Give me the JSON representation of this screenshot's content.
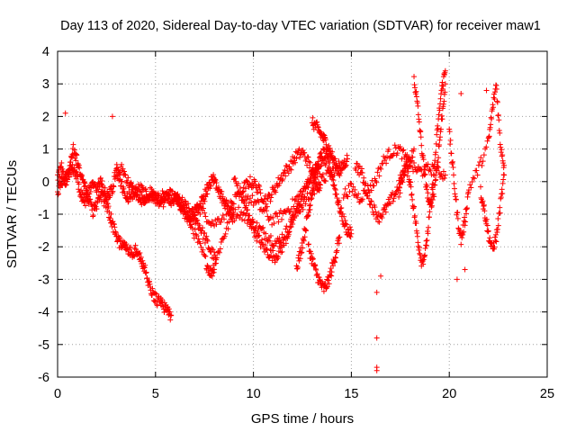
{
  "chart_data": {
    "type": "scatter",
    "title": "Day 113 of 2020, Sidereal Day-to-day VTEC variation (SDTVAR) for receiver maw1",
    "xlabel": "GPS time / hours",
    "ylabel": "SDTVAR / TECUs",
    "xlim": [
      0,
      25
    ],
    "ylim": [
      -6,
      4
    ],
    "xticks": [
      "0",
      "5",
      "10",
      "15",
      "20",
      "25"
    ],
    "yticks": [
      "4",
      "3",
      "2",
      "1",
      "0",
      "-1",
      "-2",
      "-3",
      "-4",
      "-5",
      "-6"
    ],
    "grid": true,
    "marker": "+",
    "color": "#ff0000",
    "series": [
      {
        "name": "trace-1",
        "x": [
          0.0,
          0.2,
          0.4,
          0.6,
          0.8,
          1.0,
          1.2,
          1.4,
          1.6,
          1.8,
          2.0,
          2.2,
          2.4,
          2.6,
          2.8,
          3.0,
          3.2,
          3.4,
          3.6,
          3.8,
          4.0,
          4.2,
          4.4,
          4.6,
          4.8,
          5.0,
          5.2,
          5.4,
          5.6,
          5.8
        ],
        "y": [
          0.2,
          0.4,
          0.1,
          0.5,
          1.0,
          0.6,
          0.1,
          -0.2,
          -0.6,
          -0.9,
          -0.7,
          -0.4,
          -0.6,
          -0.9,
          -1.3,
          -1.7,
          -1.9,
          -2.0,
          -2.1,
          -2.2,
          -2.1,
          -2.3,
          -2.6,
          -3.0,
          -3.4,
          -3.6,
          -3.7,
          -3.8,
          -4.0,
          -4.1
        ]
      },
      {
        "name": "trace-2",
        "x": [
          0.0,
          0.2,
          0.4,
          0.6,
          0.8,
          1.0,
          1.2,
          1.4,
          1.6,
          1.8,
          2.0,
          2.2,
          2.4,
          2.6,
          2.8,
          3.0,
          3.2,
          3.4,
          3.6,
          3.8,
          4.0,
          4.2,
          4.4,
          4.6,
          4.8,
          5.0,
          5.2,
          5.4,
          5.6,
          5.8,
          6.0,
          6.2,
          6.4,
          6.6,
          6.8,
          7.0,
          7.2,
          7.4,
          7.6,
          7.8,
          8.0,
          8.2,
          8.4,
          8.6,
          8.8,
          9.0
        ],
        "y": [
          -0.3,
          0.0,
          -0.1,
          0.3,
          0.4,
          0.1,
          -0.4,
          -0.6,
          -0.3,
          -0.1,
          -0.2,
          0.0,
          -0.3,
          -0.5,
          -0.2,
          0.4,
          0.0,
          -0.3,
          -0.5,
          -0.4,
          -0.3,
          -0.5,
          -0.6,
          -0.5,
          -0.4,
          -0.5,
          -0.6,
          -0.4,
          -0.5,
          -0.6,
          -0.5,
          -0.7,
          -0.9,
          -1.1,
          -1.2,
          -1.0,
          -0.8,
          -0.6,
          -0.3,
          0.0,
          0.1,
          -0.2,
          -0.5,
          -0.7,
          -0.9,
          -1.0
        ]
      },
      {
        "name": "trace-3",
        "x": [
          3.0,
          3.3,
          3.6,
          3.9,
          4.2,
          4.5,
          4.8,
          5.1,
          5.4,
          5.7,
          6.0,
          6.3,
          6.6,
          6.9,
          7.2,
          7.5,
          7.8,
          8.1
        ],
        "y": [
          0.2,
          0.4,
          0.0,
          -0.3,
          -0.2,
          -0.4,
          -0.3,
          -0.5,
          -0.6,
          -0.4,
          -0.5,
          -0.6,
          -0.8,
          -1.0,
          -1.3,
          -1.7,
          -2.1,
          -2.4
        ]
      },
      {
        "name": "trace-4",
        "x": [
          6.0,
          6.4,
          6.8,
          7.2,
          7.6,
          7.8,
          8.0,
          8.4,
          8.8,
          9.2,
          9.6,
          10.0,
          10.4,
          10.8,
          11.2,
          11.6,
          12.0,
          12.4,
          12.8,
          13.2,
          13.6,
          14.0,
          14.4
        ],
        "y": [
          -0.5,
          -0.8,
          -1.3,
          -1.9,
          -2.5,
          -2.8,
          -2.6,
          -1.8,
          -1.2,
          -0.9,
          -1.1,
          -1.3,
          -1.5,
          -1.7,
          -1.9,
          -1.6,
          -1.2,
          -0.8,
          -0.5,
          -0.2,
          0.1,
          0.3,
          0.5
        ]
      },
      {
        "name": "trace-5",
        "x": [
          7.0,
          7.5,
          8.0,
          8.5,
          9.0,
          9.5,
          10.0,
          10.5,
          11.0,
          11.5,
          12.0,
          12.5,
          13.0,
          13.5,
          14.0
        ],
        "y": [
          -0.7,
          -1.0,
          -1.3,
          -1.0,
          -0.6,
          -0.4,
          -0.6,
          -0.9,
          -1.2,
          -1.0,
          -0.7,
          -0.3,
          0.1,
          0.5,
          0.8
        ]
      },
      {
        "name": "trace-6",
        "x": [
          9.0,
          9.3,
          9.6,
          9.9,
          10.2,
          10.5,
          10.8,
          11.1,
          11.4,
          11.7,
          12.0,
          12.3,
          12.6,
          12.9,
          13.2,
          13.5
        ],
        "y": [
          0.1,
          -0.3,
          -0.8,
          -1.3,
          -1.7,
          -2.0,
          -2.2,
          -2.3,
          -2.1,
          -1.7,
          -1.2,
          -0.7,
          -0.3,
          0.1,
          0.4,
          0.7
        ]
      },
      {
        "name": "trace-7",
        "x": [
          9.5,
          9.8,
          10.1,
          10.4,
          10.7,
          11.0,
          11.3,
          11.6,
          11.9,
          12.2,
          12.5,
          12.8,
          13.1,
          13.4
        ],
        "y": [
          -0.2,
          0.0,
          -0.1,
          -0.4,
          -0.6,
          -0.3,
          0.0,
          0.3,
          0.5,
          0.8,
          0.9,
          0.6,
          0.2,
          -0.2
        ]
      },
      {
        "name": "trace-8",
        "x": [
          12.2,
          12.4,
          12.6,
          12.8,
          13.0,
          13.2,
          13.4,
          13.6,
          13.8,
          14.0,
          14.2,
          14.4,
          14.6,
          14.8,
          15.0
        ],
        "y": [
          -2.6,
          -2.2,
          -1.6,
          -1.0,
          -0.3,
          0.3,
          0.7,
          0.9,
          0.6,
          0.2,
          -0.3,
          -0.8,
          -1.2,
          -1.5,
          -1.6
        ]
      },
      {
        "name": "trace-9",
        "x": [
          12.8,
          13.0,
          13.2,
          13.4,
          13.6,
          13.8,
          14.0,
          14.2,
          14.4
        ],
        "y": [
          -2.0,
          -2.4,
          -2.8,
          -3.1,
          -3.3,
          -3.1,
          -2.7,
          -2.2,
          -1.7
        ]
      },
      {
        "name": "trace-10",
        "x": [
          13.0,
          13.2,
          13.4,
          13.6,
          13.8,
          14.0,
          14.2,
          14.4,
          14.6,
          14.8
        ],
        "y": [
          1.8,
          1.7,
          1.5,
          1.3,
          1.1,
          0.8,
          0.5,
          0.3,
          0.5,
          0.7
        ]
      },
      {
        "name": "trace-11",
        "x": [
          14.6,
          15.0,
          15.4,
          15.8,
          16.2,
          16.6,
          17.0,
          17.4,
          17.8,
          18.2,
          18.6,
          19.0,
          19.4,
          19.8
        ],
        "y": [
          -0.4,
          -0.2,
          -0.5,
          -0.3,
          0.0,
          0.6,
          0.9,
          1.0,
          0.7,
          0.4,
          0.3,
          0.4,
          0.3,
          0.2
        ]
      },
      {
        "name": "trace-12",
        "x": [
          15.2,
          15.5,
          15.8,
          16.1,
          16.4,
          16.7,
          17.0,
          17.3,
          17.6,
          17.9,
          18.2
        ],
        "y": [
          0.5,
          0.3,
          -0.3,
          -0.8,
          -1.1,
          -0.9,
          -0.6,
          -0.3,
          0.2,
          0.6,
          1.0
        ]
      },
      {
        "name": "trace-13",
        "x": [
          17.4,
          17.6,
          17.8,
          18.0,
          18.2,
          18.4,
          18.6,
          18.8,
          19.0,
          19.2,
          19.4,
          19.6,
          19.8
        ],
        "y": [
          -0.4,
          0.1,
          0.5,
          0.0,
          -0.9,
          -1.8,
          -2.5,
          -2.1,
          -1.0,
          0.2,
          1.6,
          2.8,
          3.4
        ]
      },
      {
        "name": "trace-14",
        "x": [
          18.2,
          18.4,
          18.6,
          18.8,
          19.0,
          19.2,
          19.4,
          19.6,
          19.8
        ],
        "y": [
          3.2,
          2.2,
          1.0,
          0.0,
          -0.8,
          -0.4,
          0.6,
          1.8,
          3.0
        ]
      },
      {
        "name": "trace-15",
        "x": [
          20.0,
          20.2,
          20.4,
          20.6,
          20.8,
          21.0,
          21.5,
          22.0,
          22.2,
          22.4,
          22.6,
          22.8
        ],
        "y": [
          1.5,
          0.3,
          -1.0,
          -1.8,
          -1.2,
          -0.2,
          0.4,
          1.2,
          2.2,
          3.0,
          1.2,
          0.5
        ]
      },
      {
        "name": "trace-16",
        "x": [
          21.6,
          21.8,
          22.0,
          22.2,
          22.4,
          22.6,
          22.8
        ],
        "y": [
          -0.3,
          -0.9,
          -1.6,
          -2.1,
          -1.7,
          -0.8,
          0.2
        ]
      }
    ],
    "outliers": {
      "x": [
        0.4,
        2.8,
        7.9,
        16.3,
        16.3,
        16.3,
        16.3,
        16.5,
        20.4,
        20.6,
        20.8,
        21.9
      ],
      "y": [
        2.1,
        2.0,
        -2.9,
        -3.4,
        -4.8,
        -5.7,
        -5.8,
        -2.9,
        -3.0,
        2.7,
        -2.7,
        2.8
      ]
    }
  }
}
